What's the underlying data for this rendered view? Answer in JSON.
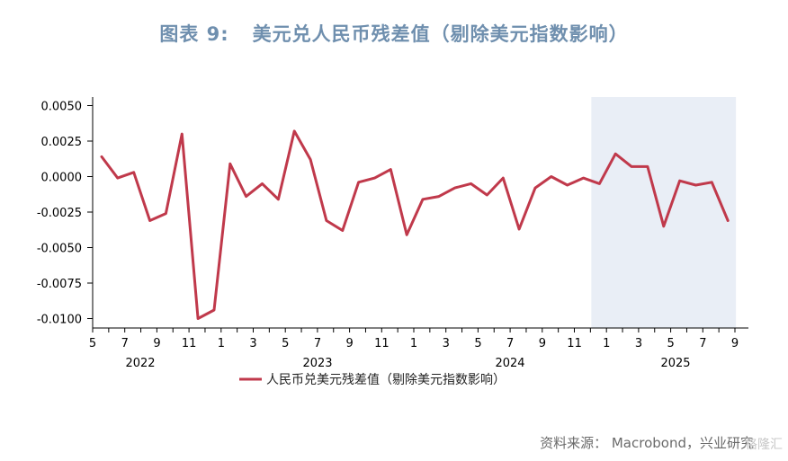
{
  "title": {
    "prefix": "图表 9:",
    "main": "美元兑人民币残差值（剔除美元指数影响）"
  },
  "source": "资料来源：  Macrobond，兴业研究",
  "watermark": "格隆汇",
  "colors": {
    "series": "#c0394b",
    "title": "#6f8fae",
    "shade": "#e9eef6",
    "axis": "#000000"
  },
  "chart_data": {
    "type": "line",
    "ylim": [
      -0.0105,
      0.0057
    ],
    "y_ticks": [
      "0.0050",
      "0.0025",
      "0.0000",
      "-0.0025",
      "-0.0050",
      "-0.0075",
      "-0.0100"
    ],
    "y_tick_values": [
      0.005,
      0.0025,
      0,
      -0.0025,
      -0.005,
      -0.0075,
      -0.01
    ],
    "x_tick_labels": [
      "5",
      "7",
      "9",
      "11",
      "1",
      "3",
      "5",
      "7",
      "9",
      "11",
      "1",
      "3",
      "5",
      "7",
      "9",
      "11",
      "1",
      "3",
      "5",
      "7",
      "9"
    ],
    "year_labels": [
      "2022",
      "2023",
      "2024",
      "2025"
    ],
    "shaded_region": {
      "from": "2025-01",
      "to": "2025-09"
    },
    "legend_position": "bottom-center",
    "series": [
      {
        "name": "人民币兑美元残差值（剔除美元指数影响）",
        "x": [
          "2022-06",
          "2022-07",
          "2022-08",
          "2022-09",
          "2022-10",
          "2022-11",
          "2022-12",
          "2023-01",
          "2023-02",
          "2023-03",
          "2023-04",
          "2023-05",
          "2023-06",
          "2023-07",
          "2023-08",
          "2023-09",
          "2023-10",
          "2023-11",
          "2023-12",
          "2024-01",
          "2024-02",
          "2024-03",
          "2024-04",
          "2024-05",
          "2024-06",
          "2024-07",
          "2024-08",
          "2024-09",
          "2024-10",
          "2024-11",
          "2024-12",
          "2025-01",
          "2025-02",
          "2025-03",
          "2025-04",
          "2025-05",
          "2025-06",
          "2025-07",
          "2025-08",
          "2025-09"
        ],
        "values": [
          0.0014,
          -0.0001,
          0.0003,
          -0.0031,
          -0.0026,
          0.003,
          -0.01,
          -0.0094,
          0.0009,
          -0.0014,
          -0.0005,
          -0.0016,
          0.0032,
          0.0012,
          -0.0031,
          -0.0038,
          -0.0004,
          -0.0001,
          0.0005,
          -0.0041,
          -0.0016,
          -0.0014,
          -0.0008,
          -0.0005,
          -0.0013,
          -0.0001,
          -0.0037,
          -0.0008,
          0.0,
          -0.0006,
          -0.0001,
          -0.0005,
          0.0016,
          0.0007,
          0.0007,
          -0.0035,
          -0.0003,
          -0.0006,
          -0.0004,
          -0.0031
        ]
      }
    ]
  }
}
